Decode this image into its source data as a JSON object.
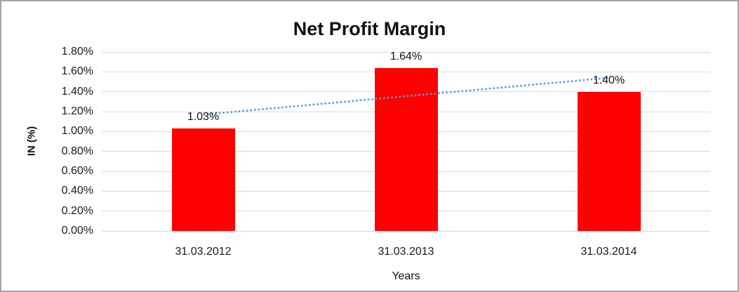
{
  "window": {
    "background_color": "#FFFFFF",
    "frame_border_color": "#A3A3A3"
  },
  "chart_data": {
    "type": "bar",
    "title": "Net Profit Margin",
    "xlabel": "Years",
    "ylabel": "IN (%)",
    "categories": [
      "31.03.2012",
      "31.03.2013",
      "31.03.2014"
    ],
    "series": [
      {
        "name": "Net Profit Margin",
        "values": [
          1.03,
          1.64,
          1.4
        ]
      }
    ],
    "bar_labels": [
      "1.03%",
      "1.64%",
      "1.40%"
    ],
    "ylim": [
      0,
      1.8
    ],
    "ytick_step": 0.2,
    "ytick_labels": [
      "0.00%",
      "0.20%",
      "0.40%",
      "0.60%",
      "0.80%",
      "1.00%",
      "1.20%",
      "1.40%",
      "1.60%",
      "1.80%"
    ],
    "grid": true,
    "legend_position": "none",
    "bar_color": "#FF0000",
    "gridline_color": "#D9D9D9",
    "text_color": "#111111",
    "trendline": {
      "type": "linear",
      "style": "dotted",
      "color": "#5B9BD5",
      "start_value": 1.17,
      "end_value": 1.54
    }
  }
}
